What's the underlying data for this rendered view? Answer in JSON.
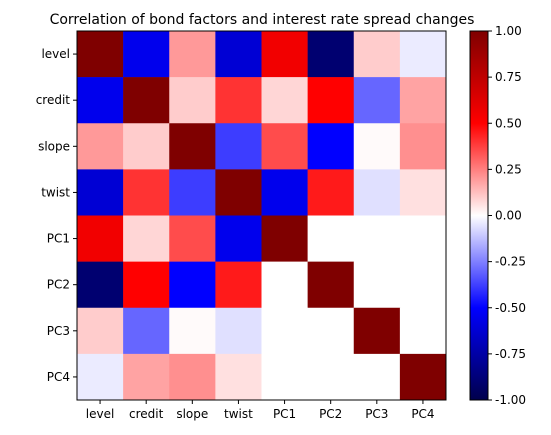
{
  "chart_data": {
    "type": "heatmap",
    "title": "Correlation of bond factors and interest rate spread changes",
    "xlabel": "",
    "ylabel": "",
    "rows": [
      "level",
      "credit",
      "slope",
      "twist",
      "PC1",
      "PC2",
      "PC3",
      "PC4"
    ],
    "columns": [
      "level",
      "credit",
      "slope",
      "twist",
      "PC1",
      "PC2",
      "PC3",
      "PC4"
    ],
    "values": [
      [
        1.0,
        -0.55,
        0.2,
        -0.62,
        0.55,
        -0.9,
        0.1,
        -0.04
      ],
      [
        -0.55,
        1.0,
        0.1,
        0.4,
        0.08,
        0.5,
        -0.3,
        0.18
      ],
      [
        0.2,
        0.1,
        1.0,
        -0.38,
        0.35,
        -0.5,
        0.01,
        0.22
      ],
      [
        -0.62,
        0.4,
        -0.38,
        1.0,
        -0.55,
        0.45,
        -0.06,
        0.06
      ],
      [
        0.55,
        0.08,
        0.35,
        -0.55,
        1.0,
        0.0,
        0.0,
        0.0
      ],
      [
        -0.9,
        0.5,
        -0.5,
        0.45,
        0.0,
        1.0,
        0.0,
        0.0
      ],
      [
        0.1,
        -0.3,
        0.01,
        -0.06,
        0.0,
        0.0,
        1.0,
        0.0
      ],
      [
        -0.04,
        0.18,
        0.22,
        0.06,
        0.0,
        0.0,
        0.0,
        1.0
      ]
    ],
    "colormap": "seismic",
    "colorbar": {
      "range": [
        -1.0,
        1.0
      ],
      "ticks": [
        "-1.00",
        "-0.75",
        "-0.50",
        "-0.25",
        "0.00",
        "0.25",
        "0.50",
        "0.75",
        "1.00"
      ]
    }
  }
}
